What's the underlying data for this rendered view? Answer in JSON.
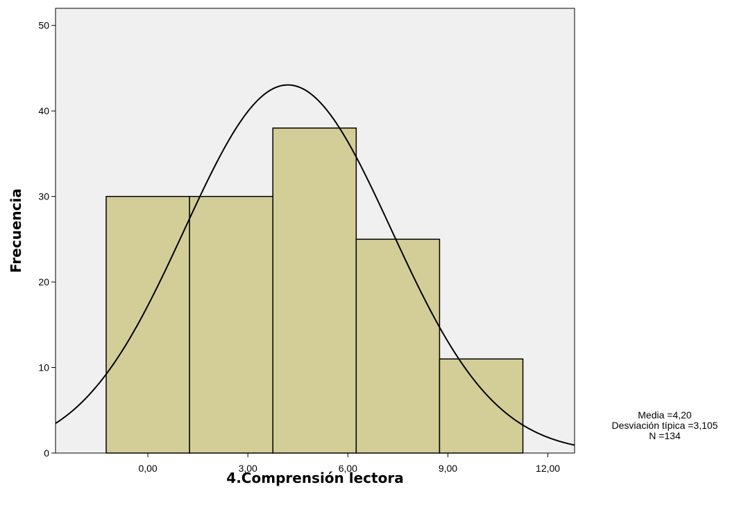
{
  "chart_data": {
    "type": "bar",
    "subtype": "histogram",
    "xlabel": "4.Comprensión lectora",
    "ylabel": "Frecuencia",
    "xlim": [
      -2.77,
      12.8
    ],
    "ylim": [
      0,
      52
    ],
    "bins": [
      {
        "from": -1.25,
        "to": 1.25,
        "count": 30
      },
      {
        "from": 1.25,
        "to": 3.75,
        "count": 30
      },
      {
        "from": 3.75,
        "to": 6.25,
        "count": 38
      },
      {
        "from": 6.25,
        "to": 8.75,
        "count": 25
      },
      {
        "from": 8.75,
        "to": 11.25,
        "count": 11
      }
    ],
    "x_ticks": [
      {
        "value": 0,
        "label": "0,00"
      },
      {
        "value": 3,
        "label": "3,00"
      },
      {
        "value": 6,
        "label": "6,00"
      },
      {
        "value": 9,
        "label": "9,00"
      },
      {
        "value": 12,
        "label": "12,00"
      }
    ],
    "y_ticks": [
      {
        "value": 0,
        "label": "0"
      },
      {
        "value": 10,
        "label": "10"
      },
      {
        "value": 20,
        "label": "20"
      },
      {
        "value": 30,
        "label": "30"
      },
      {
        "value": 40,
        "label": "40"
      },
      {
        "value": 50,
        "label": "50"
      }
    ],
    "normal_curve": {
      "mean": 4.2,
      "sd": 3.105,
      "n": 134,
      "bin_width": 2.5
    },
    "stats": [
      "Media =4,20",
      "Desviación típica =3,105",
      "N =134"
    ],
    "grid": false,
    "colors": {
      "plot_background": "#f0f0f0",
      "bar_fill": "#d3ce97",
      "bar_stroke": "#000000",
      "curve": "#000000"
    }
  }
}
